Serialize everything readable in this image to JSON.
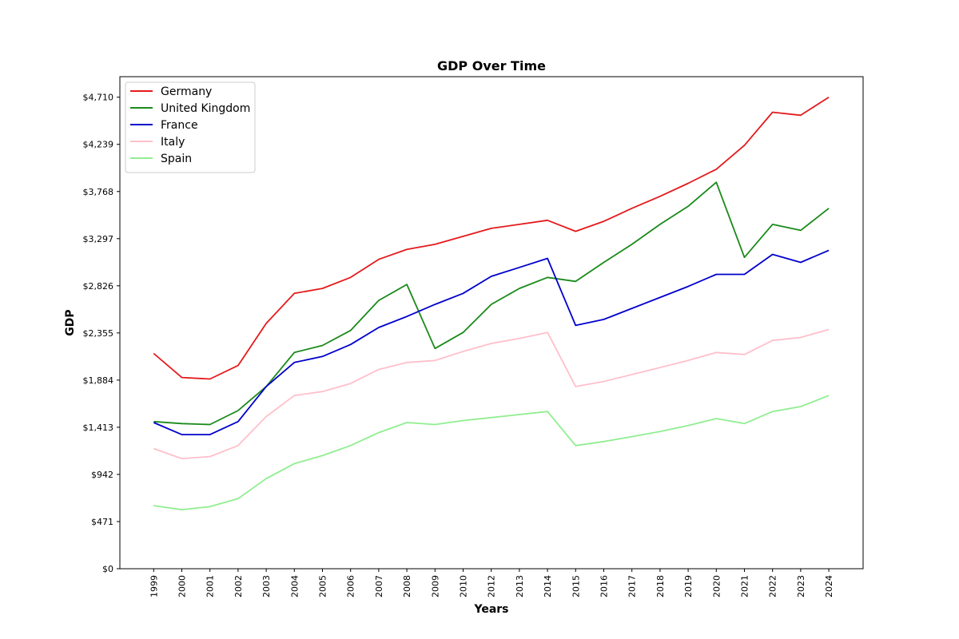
{
  "chart_data": {
    "type": "line",
    "title": "GDP Over Time",
    "xlabel": "Years",
    "ylabel": "GDP",
    "x": [
      "1999",
      "2000",
      "2001",
      "2002",
      "2003",
      "2004",
      "2005",
      "2006",
      "2007",
      "2008",
      "2009",
      "2010",
      "2012",
      "2013",
      "2014",
      "2015",
      "2016",
      "2017",
      "2018",
      "2019",
      "2020",
      "2021",
      "2022",
      "2023",
      "2024"
    ],
    "yticks": [
      0,
      471,
      942,
      1413,
      1884,
      2355,
      2826,
      3297,
      3768,
      4239,
      4710
    ],
    "ytick_labels": [
      "$0",
      "$471",
      "$942",
      "$1,413",
      "$1,884",
      "$2,355",
      "$2,826",
      "$3,297",
      "$3,768",
      "$4,239",
      "$4,710"
    ],
    "ylim": [
      0,
      4915
    ],
    "grid": false,
    "legend_position": "top-left",
    "series": [
      {
        "name": "Germany",
        "color": "#e41a1c",
        "values": [
          2150,
          1910,
          1895,
          2030,
          2450,
          2750,
          2800,
          2910,
          3090,
          3190,
          3240,
          3320,
          3400,
          3440,
          3480,
          3370,
          3470,
          3600,
          3720,
          3850,
          3990,
          4230,
          4560,
          4530,
          4710
        ]
      },
      {
        "name": "United Kingdom",
        "color": "#1a8a1a",
        "values": [
          1470,
          1450,
          1440,
          1580,
          1820,
          2160,
          2230,
          2380,
          2680,
          2840,
          2200,
          2360,
          2640,
          2800,
          2910,
          2870,
          3060,
          3240,
          3440,
          3620,
          3860,
          3110,
          3440,
          3380,
          3600
        ]
      },
      {
        "name": "France",
        "color": "#0000cc",
        "values": [
          1460,
          1340,
          1340,
          1470,
          1820,
          2060,
          2120,
          2240,
          2410,
          2520,
          2640,
          2750,
          2920,
          3010,
          3100,
          2430,
          2490,
          2600,
          2710,
          2820,
          2940,
          2940,
          3140,
          3060,
          3180
        ]
      },
      {
        "name": "Italy",
        "color": "#ffc0cb",
        "values": [
          1200,
          1100,
          1120,
          1230,
          1520,
          1730,
          1770,
          1850,
          1990,
          2060,
          2080,
          2170,
          2250,
          2300,
          2360,
          1820,
          1870,
          1940,
          2010,
          2080,
          2160,
          2140,
          2280,
          2310,
          2390
        ]
      },
      {
        "name": "Spain",
        "color": "#90ee90",
        "values": [
          630,
          590,
          620,
          700,
          900,
          1050,
          1130,
          1230,
          1360,
          1460,
          1440,
          1480,
          1510,
          1540,
          1570,
          1230,
          1270,
          1320,
          1370,
          1430,
          1500,
          1450,
          1570,
          1620,
          1730
        ]
      }
    ]
  }
}
